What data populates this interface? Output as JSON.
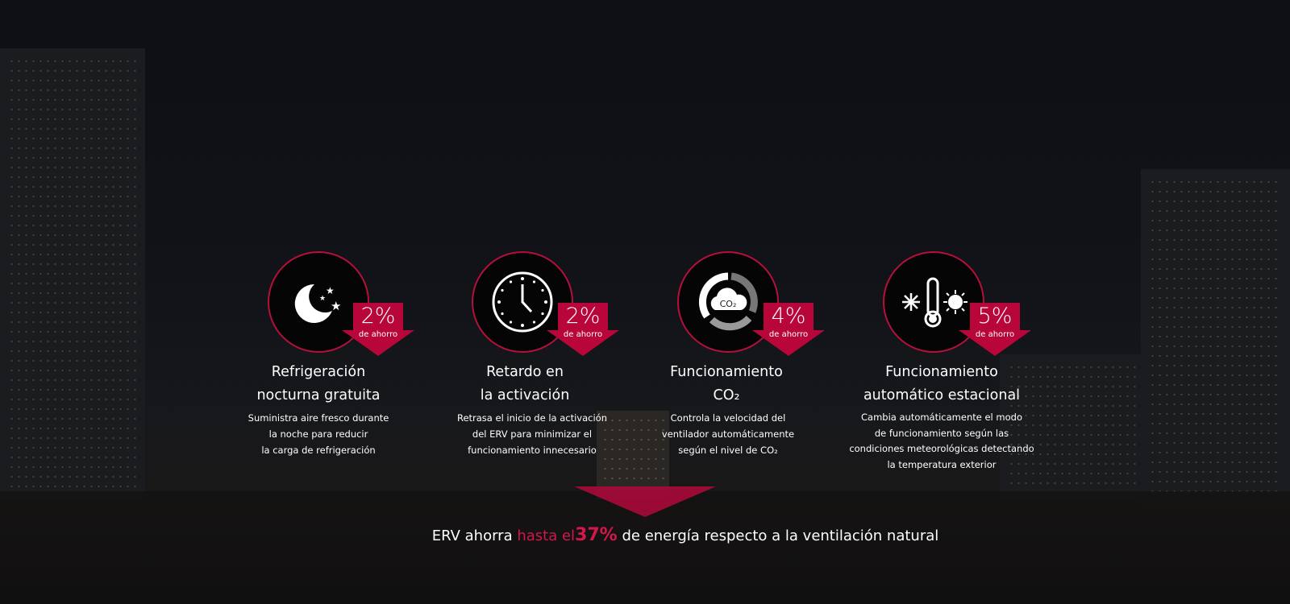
{
  "accent_color": "#b8053a",
  "features": [
    {
      "icon": "moon-stars-icon",
      "percent": "2%",
      "savings_label": "de ahorro",
      "title_lines": [
        "Refrigeración",
        "nocturna gratuita"
      ],
      "description_lines": [
        "Suministra aire fresco durante",
        "la noche para reducir",
        "la carga de refrigeración"
      ]
    },
    {
      "icon": "clock-icon",
      "percent": "2%",
      "savings_label": "de ahorro",
      "title_lines": [
        "Retardo en",
        "la activación"
      ],
      "description_lines": [
        "Retrasa el inicio de la activación",
        "del ERV para minimizar el",
        "funcionamiento innecesario"
      ]
    },
    {
      "icon": "co2-cycle-icon",
      "icon_text": "CO₂",
      "percent": "4%",
      "savings_label": "de ahorro",
      "title_lines": [
        "Funcionamiento",
        "CO₂"
      ],
      "description_lines": [
        "Controla la velocidad del",
        "ventilador automáticamente",
        "según el nivel de CO₂"
      ]
    },
    {
      "icon": "snowflake-thermometer-sun-icon",
      "percent": "5%",
      "savings_label": "de ahorro",
      "title_lines": [
        "Funcionamiento",
        "automático estacional"
      ],
      "description_lines": [
        "Cambia automáticamente el modo",
        "de funcionamiento según las",
        "condiciones meteorológicas detectando",
        "la temperatura exterior"
      ]
    }
  ],
  "footer": {
    "prefix": "ERV ahorra",
    "highlight": "hasta el",
    "value": "37%",
    "suffix": "de energía respecto a la ventilación natural"
  }
}
